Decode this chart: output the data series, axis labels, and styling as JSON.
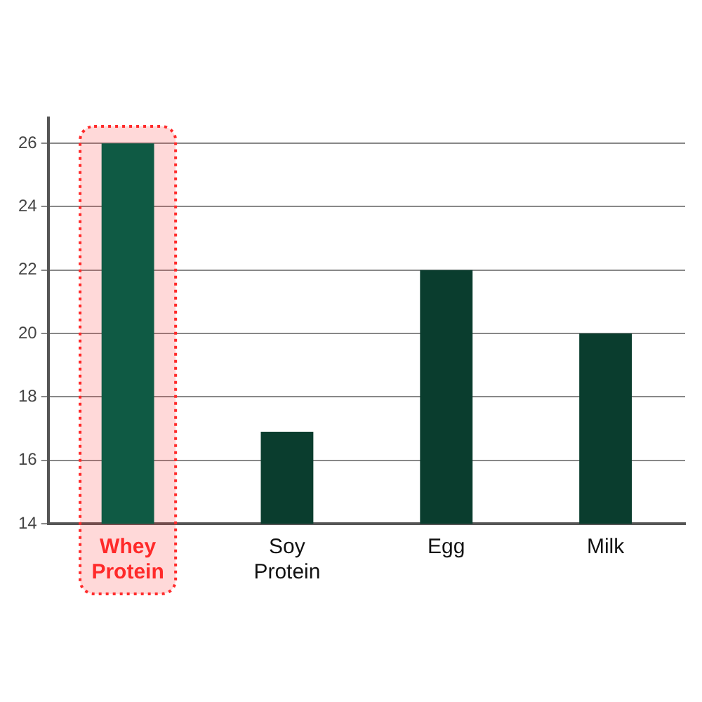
{
  "chart_data": {
    "type": "bar",
    "categories": [
      "Whey Protein",
      "Soy Protein",
      "Egg",
      "Milk"
    ],
    "values": [
      26,
      16.9,
      22,
      20
    ],
    "colors": [
      "#0f5a44",
      "#0a3d2e",
      "#0a3d2e",
      "#0a3d2e"
    ],
    "ylim": [
      14,
      26.8
    ],
    "yticks": [
      14,
      16,
      18,
      20,
      22,
      24,
      26
    ],
    "grid": "y",
    "bands": [
      {
        "axis": "x",
        "from": "Whey Protein",
        "to": "Whey Protein",
        "color": "#ff2a2a"
      }
    ]
  }
}
